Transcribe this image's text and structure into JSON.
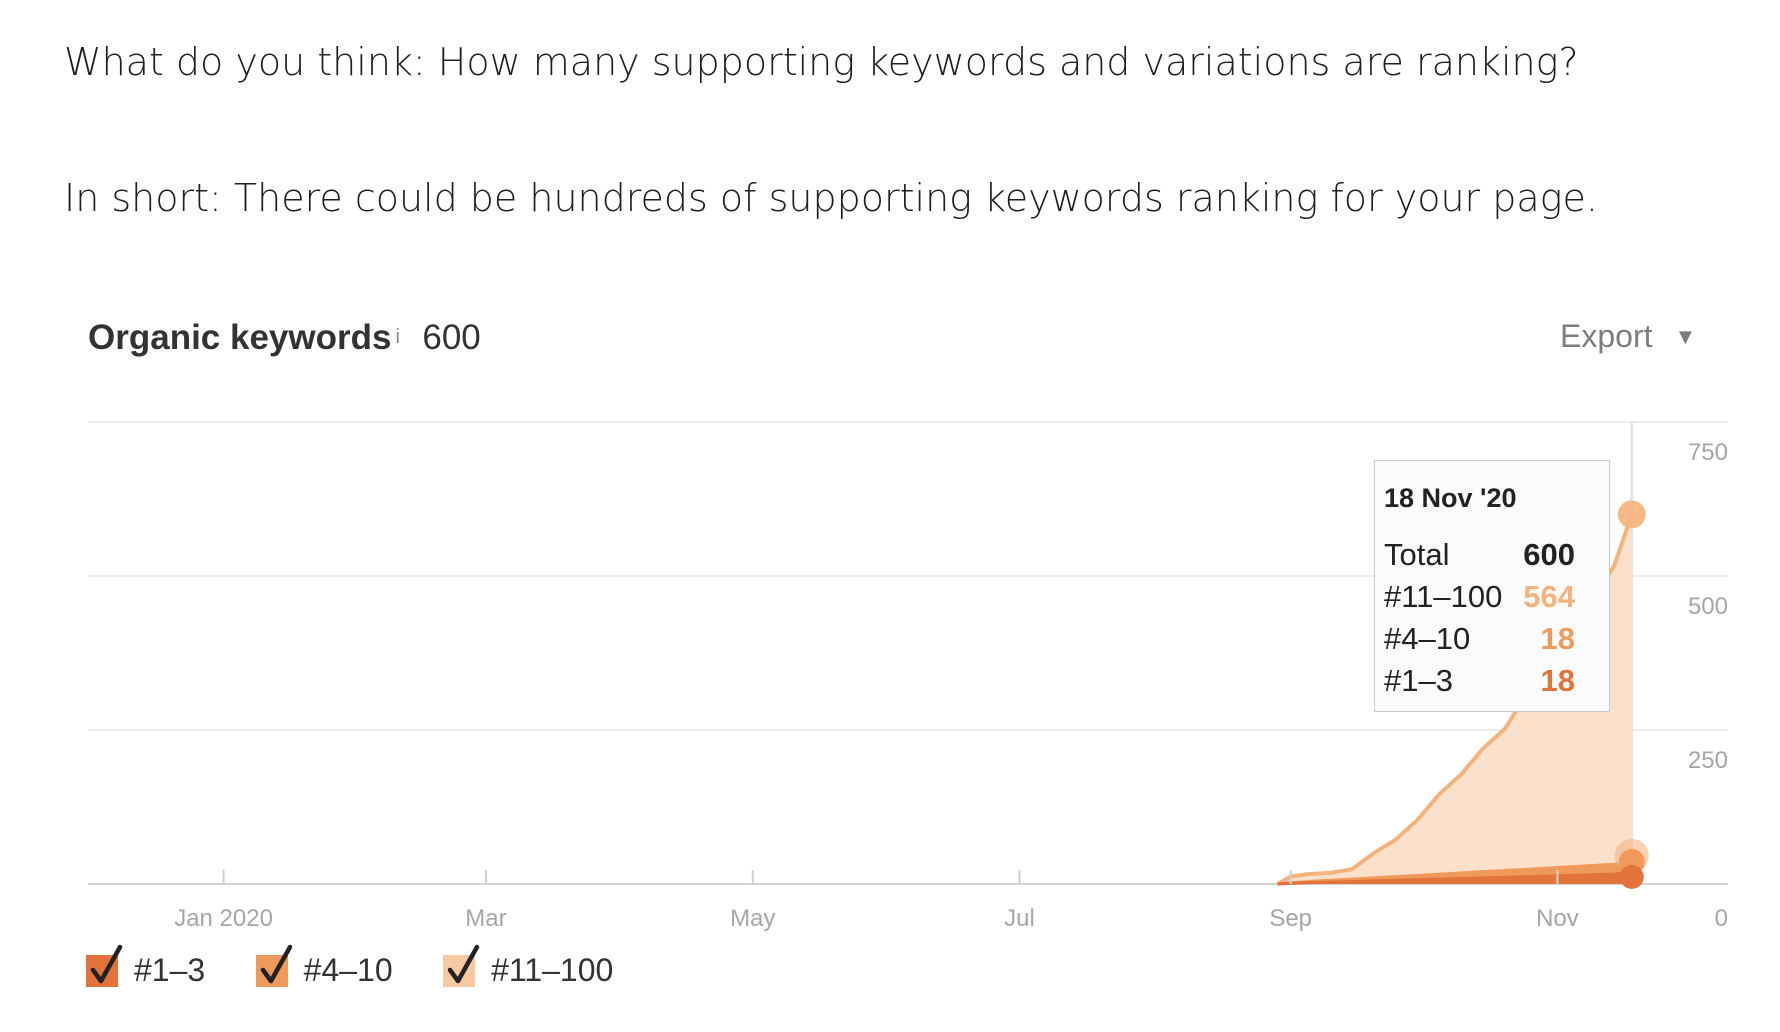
{
  "paragraphs": {
    "question": "What do you think: How many supporting keywords and variations are ranking?",
    "answer": "In short: There could be hundreds of supporting keywords ranking for your page."
  },
  "widget": {
    "title": "Organic keywords",
    "info_mark": "i",
    "total": "600",
    "export_label": "Export",
    "icons": {
      "info": "info-icon",
      "export_caret": "caret-down-icon",
      "checkbox": "checkbox-checked-icon"
    }
  },
  "tooltip": {
    "date": "18 Nov '20",
    "rows": [
      {
        "label": "Total",
        "value": "600"
      },
      {
        "label": "#11–100",
        "value": "564"
      },
      {
        "label": "#4–10",
        "value": "18"
      },
      {
        "label": "#1–3",
        "value": "18"
      }
    ]
  },
  "legend": [
    {
      "label": "#1–3",
      "checked": true,
      "color": "#e2733a"
    },
    {
      "label": "#4–10",
      "checked": true,
      "color": "#ef9a5c"
    },
    {
      "label": "#11–100",
      "checked": true,
      "color": "#f6c9a3"
    }
  ],
  "colors": {
    "top3": "#e2733a",
    "top10": "#ef9a5c",
    "top100_line": "#f4b27c",
    "top100_fill": "#fbe1cb",
    "gridline": "#e6e6e6",
    "axis_text": "#a6a6a6",
    "total_value": "#222222"
  },
  "chart_data": {
    "type": "area",
    "stacked": true,
    "x_tick_labels": [
      "Jan 2020",
      "Mar",
      "May",
      "Jul",
      "Sep",
      "Nov"
    ],
    "y_tick_labels": [
      "0",
      "250",
      "500",
      "750"
    ],
    "ylim": [
      0,
      750
    ],
    "y_axis_side": "right",
    "grid": true,
    "legend_placement": "bottom-left",
    "hover_date": "18 Nov '20",
    "x": [
      "2020-08-29",
      "2020-09-01",
      "2020-09-05",
      "2020-09-10",
      "2020-09-15",
      "2020-09-20",
      "2020-09-25",
      "2020-09-30",
      "2020-10-05",
      "2020-10-10",
      "2020-10-15",
      "2020-10-20",
      "2020-10-25",
      "2020-10-30",
      "2020-11-04",
      "2020-11-09",
      "2020-11-14",
      "2020-11-18"
    ],
    "series": [
      {
        "name": "#1–3",
        "color": "#e2733a",
        "values": [
          0,
          1,
          2,
          3,
          4,
          5,
          6,
          7,
          8,
          9,
          10,
          11,
          12,
          13,
          14,
          15,
          16,
          18
        ]
      },
      {
        "name": "#4–10",
        "color": "#ef9a5c",
        "values": [
          0,
          1,
          2,
          3,
          4,
          5,
          6,
          7,
          8,
          9,
          10,
          11,
          12,
          13,
          14,
          15,
          16,
          18
        ]
      },
      {
        "name": "#11–100",
        "color": "#f4b27c",
        "values": [
          0,
          10,
          12,
          12,
          16,
          40,
          60,
          90,
          130,
          160,
          200,
          230,
          285,
          330,
          385,
          430,
          485,
          564
        ]
      }
    ]
  }
}
